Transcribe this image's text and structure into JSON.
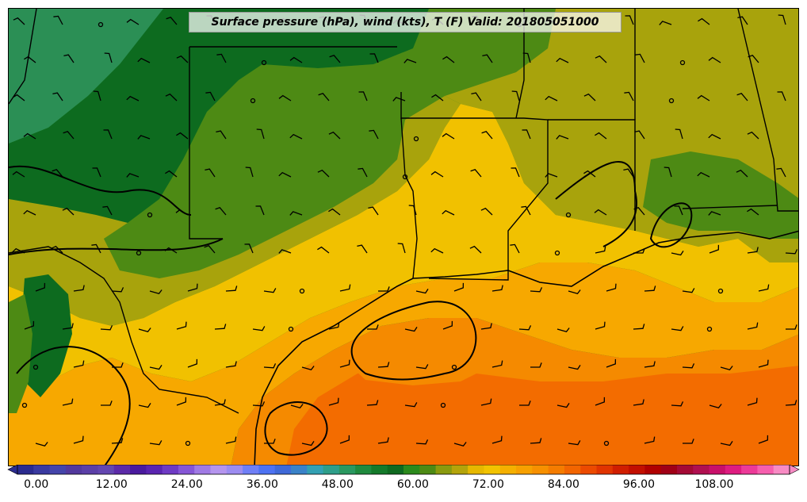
{
  "title": "Surface pressure (hPa), wind (kts), T (F) Valid: 201805051000",
  "colorbar": {
    "tick_labels": [
      "0.00",
      "12.00",
      "24.00",
      "36.00",
      "48.00",
      "60.00",
      "72.00",
      "84.00",
      "96.00",
      "108.00"
    ],
    "tick_values": [
      0,
      12,
      24,
      36,
      48,
      60,
      72,
      84,
      96,
      108
    ],
    "min": -3,
    "max": 120,
    "step": 3,
    "extend": "both",
    "colors": [
      "#2b2b8f",
      "#3a3aa0",
      "#4444aa",
      "#52389d",
      "#5b3fa7",
      "#6346b0",
      "#5c2aa8",
      "#4a1a9e",
      "#5a24b0",
      "#6e3ac4",
      "#8656d6",
      "#a07ae4",
      "#b595ee",
      "#9c8cf0",
      "#6f7ff6",
      "#4d72f2",
      "#3f69d8",
      "#3a82c8",
      "#33a0b3",
      "#2e9e8a",
      "#2a9860",
      "#1f8a3e",
      "#147a2a",
      "#0f6a20",
      "#2b8a1c",
      "#4d8a14",
      "#8a9a0e",
      "#b4a40a",
      "#e6b800",
      "#f2c300",
      "#f5b000",
      "#f7a000",
      "#f79000",
      "#f57c00",
      "#f26500",
      "#ec4a00",
      "#e03400",
      "#d01e00",
      "#c20f00",
      "#b00000",
      "#a00016",
      "#a40a35",
      "#b01050",
      "#c8106a",
      "#de1c80",
      "#ec3a98",
      "#f65fae",
      "#f88bc4"
    ]
  },
  "map": {
    "temperature_colors": {
      "t54": "#2b8f55",
      "t57": "#0d6b1f",
      "t60": "#1f7a22",
      "t63": "#4d8a14",
      "t66": "#a8a30c",
      "t69": "#f1c100",
      "t72": "#f7a800",
      "t75": "#f58a00",
      "t78": "#f36c00"
    },
    "wind_barbs": "north-to-northeast flow inland, southeast-to-east flow over the Gulf",
    "isobars": "surface pressure contours",
    "state_boundaries": true
  }
}
